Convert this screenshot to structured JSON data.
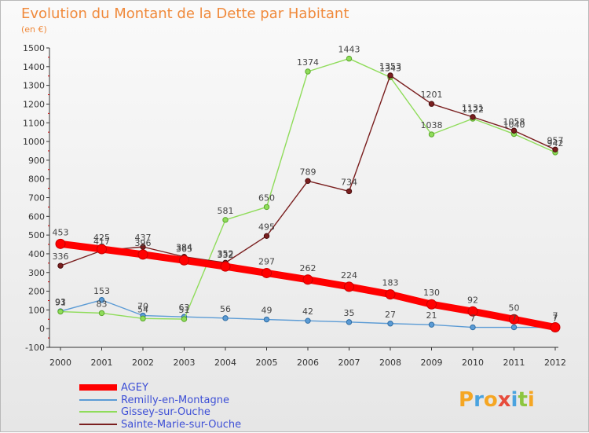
{
  "chart_data": {
    "type": "line",
    "title": "Evolution du Montant de la Dette par Habitant",
    "subtitle": "(en €)",
    "xlabel": "",
    "ylabel": "",
    "x": [
      "2000",
      "2001",
      "2002",
      "2003",
      "2004",
      "2005",
      "2006",
      "2007",
      "2008",
      "2009",
      "2010",
      "2011",
      "2012"
    ],
    "ylim": [
      -100,
      1500
    ],
    "yticks": [
      -100,
      0,
      100,
      200,
      300,
      400,
      500,
      600,
      700,
      800,
      900,
      1000,
      1100,
      1200,
      1300,
      1400,
      1500
    ],
    "grid": false,
    "legend_position": "bottom-left",
    "series": [
      {
        "name": "AGEY",
        "color": "#ff0000",
        "values": [
          453,
          425,
          396,
          365,
          332,
          297,
          262,
          224,
          183,
          130,
          92,
          50,
          7
        ]
      },
      {
        "name": "Remilly-en-Montagne",
        "color": "#5b9bd5",
        "values": [
          93,
          153,
          70,
          63,
          56,
          49,
          42,
          35,
          27,
          21,
          7,
          7,
          7
        ]
      },
      {
        "name": "Gissey-sur-Ouche",
        "color": "#8fdc5a",
        "values": [
          91,
          83,
          54,
          51,
          581,
          650,
          1374,
          1443,
          1343,
          1038,
          1122,
          1040,
          942
        ]
      },
      {
        "name": "Sainte-Marie-sur-Ouche",
        "color": "#7a1f1f",
        "values": [
          336,
          417,
          437,
          384,
          352,
          495,
          789,
          734,
          1353,
          1201,
          1131,
          1058,
          957
        ]
      }
    ]
  },
  "logo": {
    "text": "Proxiti",
    "letter_colors": [
      "#f5a623",
      "#4aa3df",
      "#f5a623",
      "#e74c3c",
      "#4aa3df",
      "#8cc63f",
      "#f5a623"
    ]
  }
}
